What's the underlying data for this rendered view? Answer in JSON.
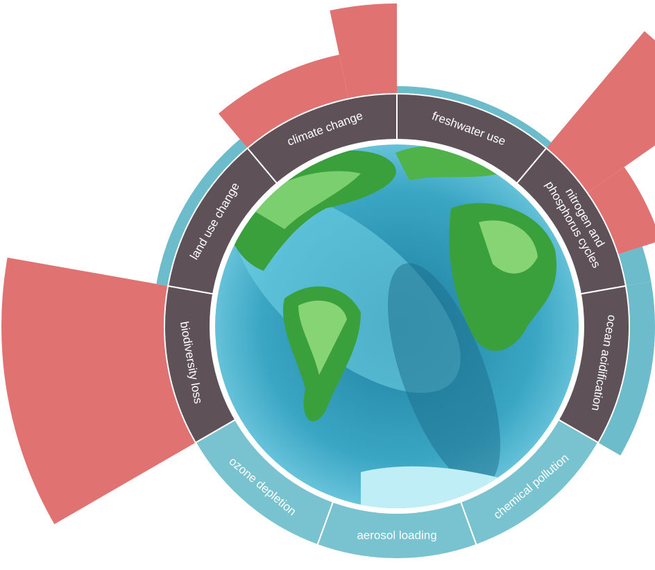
{
  "diagram": {
    "segments": [
      {
        "label": [
          "freshwater use"
        ]
      },
      {
        "label": [
          "nitrogen and",
          "phosphorus cycles"
        ]
      },
      {
        "label": [
          "ocean acidification"
        ]
      },
      {
        "label": [
          "chemical pollution"
        ]
      },
      {
        "label": [
          "aerosol loading"
        ]
      },
      {
        "label": [
          "ozone depletion"
        ]
      },
      {
        "label": [
          "biodiversity loss"
        ]
      },
      {
        "label": [
          "land use change"
        ]
      },
      {
        "label": [
          "climate change"
        ]
      }
    ]
  }
}
